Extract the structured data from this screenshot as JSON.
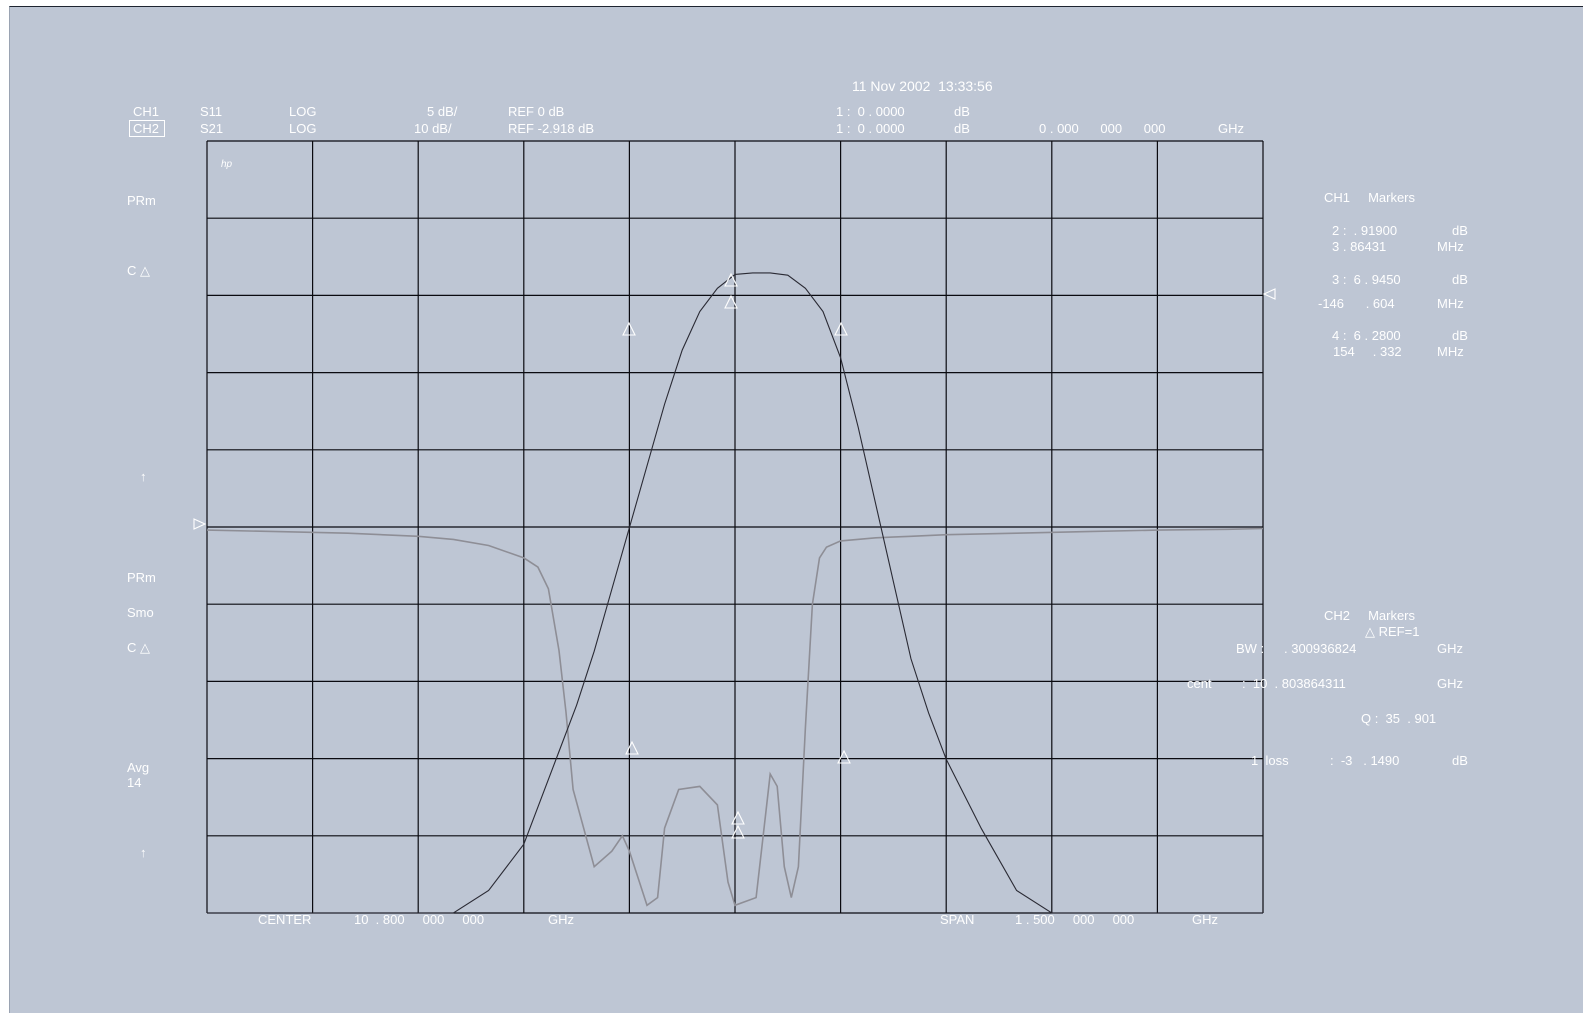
{
  "timestamp": "11 Nov 2002  13:33:56",
  "ch1": {
    "label": "CH1",
    "param": "S11",
    "format": "LOG",
    "scale": "5 dB/",
    "ref": "REF 0 dB",
    "m1": "1 :  0 . 0000",
    "m1_unit": "dB"
  },
  "ch2": {
    "label": "CH2",
    "param": "S21",
    "format": "LOG",
    "scale": "10 dB/",
    "ref": "REF -2.918 dB",
    "m1": "1 :  0 . 0000",
    "m1_unit": "dB",
    "freq": "0 . 000      000      000",
    "freq_unit": "GHz"
  },
  "left_labels": {
    "prm1": "PRm",
    "cdelta1": "C △",
    "arrow1": "↑",
    "prm2": "PRm",
    "smo": "Smo",
    "cdelta2": "C △",
    "avg": "Avg",
    "avg_n": "14",
    "arrow2": "↑"
  },
  "hp_logo": "hp",
  "ch1_markers": {
    "title": "CH1     Markers",
    "m2a": "2 :  . 91900",
    "m2a_unit": "dB",
    "m2b": "3 . 86431",
    "m2b_unit": "MHz",
    "m3a": "3 :  6 . 9450",
    "m3a_unit": "dB",
    "m3b": "-146      . 604",
    "m3b_unit": "MHz",
    "m4a": "4 :  6 . 2800",
    "m4a_unit": "dB",
    "m4b": "154     . 332",
    "m4b_unit": "MHz"
  },
  "ch2_markers": {
    "title": "CH2     Markers",
    "ref": "△ REF=1",
    "bw_label": "BW :",
    "bw": ". 300936824",
    "bw_unit": "GHz",
    "cent_label": "cent",
    "cent": ":  10  . 803864311",
    "cent_unit": "GHz",
    "q": "Q :  35  . 901",
    "loss_label": "1  loss",
    "loss": ":  -3   . 1490",
    "loss_unit": "dB"
  },
  "bottom": {
    "center_label": "CENTER",
    "center": "10  . 800     000     000",
    "center_unit": "GHz",
    "span_label": "SPAN",
    "span": "1 . 500     000     000",
    "span_unit": "GHz"
  },
  "colors": {
    "screen": "#bec6d4",
    "grid": "#0a0a10",
    "text": "#ffffff",
    "trace_ch1": "#8e8e96",
    "trace_ch2": "#2a2a34"
  },
  "chart_data": {
    "type": "line",
    "x_unit": "GHz",
    "x_center": 10.8,
    "x_span": 1.5,
    "xlim": [
      10.05,
      11.55
    ],
    "grid": true,
    "grid_divisions": [
      10,
      10
    ],
    "series": [
      {
        "channel": "CH2",
        "param": "S21",
        "scale_db_per_div": 10,
        "ref_db": -2.918,
        "ref_division": 8,
        "x": [
          10.05,
          10.125,
          10.2,
          10.25,
          10.3,
          10.35,
          10.4,
          10.45,
          10.5,
          10.55,
          10.575,
          10.6,
          10.625,
          10.65,
          10.675,
          10.7,
          10.725,
          10.75,
          10.775,
          10.8,
          10.825,
          10.85,
          10.875,
          10.9,
          10.925,
          10.95,
          10.975,
          11.0,
          11.025,
          11.05,
          11.075,
          11.1,
          11.15,
          11.2,
          11.25,
          11.3,
          11.35,
          11.4,
          11.45,
          11.5,
          11.55
        ],
        "values": [
          -92,
          -92,
          -92,
          -91,
          -89,
          -86,
          -84,
          -80,
          -74,
          -62,
          -56,
          -49,
          -41,
          -33,
          -25,
          -17,
          -10,
          -5,
          -2,
          -0.2,
          0,
          0,
          -0.3,
          -2,
          -5,
          -11,
          -20,
          -30,
          -40,
          -50,
          -57,
          -63,
          -72,
          -80,
          -84,
          -86,
          -88,
          -90,
          -91,
          -92,
          -92
        ]
      },
      {
        "channel": "CH1",
        "param": "S11",
        "scale_db_per_div": 5,
        "ref_db": 0,
        "ref_division": 5,
        "x": [
          10.05,
          10.15,
          10.25,
          10.35,
          10.4,
          10.45,
          10.5,
          10.52,
          10.535,
          10.55,
          10.56,
          10.57,
          10.6,
          10.625,
          10.64,
          10.65,
          10.675,
          10.69,
          10.7,
          10.72,
          10.75,
          10.775,
          10.79,
          10.8,
          10.83,
          10.845,
          10.85,
          10.86,
          10.87,
          10.88,
          10.89,
          10.9,
          10.91,
          10.92,
          10.93,
          10.95,
          11.0,
          11.05,
          11.1,
          11.2,
          11.3,
          11.4,
          11.5,
          11.55
        ],
        "values": [
          -0.2,
          -0.3,
          -0.4,
          -0.6,
          -0.8,
          -1.2,
          -2,
          -2.6,
          -4,
          -8,
          -12,
          -17,
          -22,
          -21,
          -20,
          -21,
          -24.5,
          -24,
          -19.5,
          -17,
          -16.8,
          -18,
          -23,
          -24.5,
          -24,
          -18,
          -16,
          -16.8,
          -22,
          -24,
          -22,
          -13,
          -5,
          -2,
          -1.3,
          -0.9,
          -0.7,
          -0.6,
          -0.5,
          -0.4,
          -0.3,
          -0.2,
          -0.15,
          -0.1
        ]
      }
    ]
  }
}
